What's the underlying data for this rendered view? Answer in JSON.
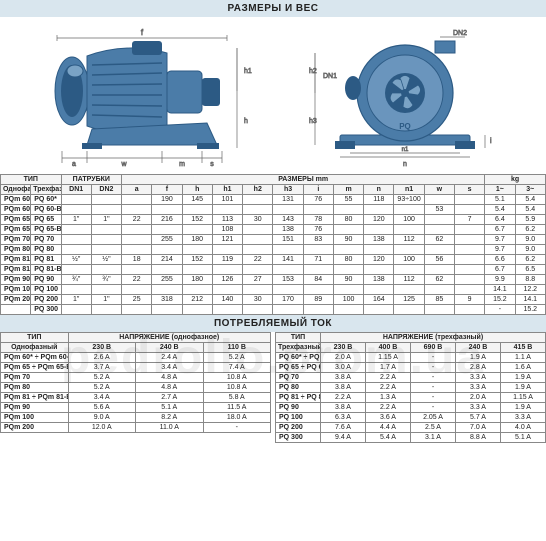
{
  "colors": {
    "header_bg": "#d9e6ee",
    "pump_body": "#4b7ca8",
    "pump_dark": "#2c5a84",
    "pump_light": "#7aa3c5",
    "dim_line": "#666666",
    "border": "#888888",
    "watermark": "#333333"
  },
  "title_top": "РАЗМЕРЫ И ВЕС",
  "title_bottom": "ПОТРЕБЛЯЕМЫЙ ТОК",
  "watermark_text": "pedrollo.prom.ua",
  "spec_table": {
    "group_headers": [
      "ТИП",
      "ПАТРУБКИ",
      "РАЗМЕРЫ mm",
      "kg"
    ],
    "col_headers": [
      "Однофазный",
      "Трехфазный",
      "DN1",
      "DN2",
      "a",
      "f",
      "h",
      "h1",
      "h2",
      "h3",
      "i",
      "m",
      "n",
      "n1",
      "w",
      "s",
      "1~",
      "3~"
    ],
    "rows": [
      [
        "PQm 60*",
        "PQ 60*",
        "",
        "",
        "",
        "190",
        "145",
        "101",
        "",
        "131",
        "76",
        "55",
        "118",
        "93÷100",
        "",
        "",
        "5.1",
        "5.4"
      ],
      [
        "PQm 60-Bs",
        "PQ 60-Bs",
        "",
        "",
        "",
        "",
        "",
        "",
        "",
        "",
        "",
        "",
        "",
        "",
        "53",
        "",
        "5.4",
        "5.4"
      ],
      [
        "PQm 65",
        "PQ 65",
        "1\"",
        "1\"",
        "22",
        "216",
        "152",
        "113",
        "30",
        "143",
        "78",
        "80",
        "120",
        "100",
        "",
        "7",
        "6.4",
        "5.9"
      ],
      [
        "PQm 65-Bs",
        "PQ 65-Bs",
        "",
        "",
        "",
        "",
        "",
        "108",
        "",
        "138",
        "76",
        "",
        "",
        "",
        "",
        "",
        "6.7",
        "6.2"
      ],
      [
        "PQm 70",
        "PQ 70",
        "",
        "",
        "",
        "255",
        "180",
        "121",
        "",
        "151",
        "83",
        "90",
        "138",
        "112",
        "62",
        "",
        "9.7",
        "9.0"
      ],
      [
        "PQm 80",
        "PQ 80",
        "",
        "",
        "",
        "",
        "",
        "",
        "",
        "",
        "",
        "",
        "",
        "",
        "",
        "",
        "9.7",
        "9.0"
      ],
      [
        "PQm 81",
        "PQ 81",
        "½\"",
        "½\"",
        "18",
        "214",
        "152",
        "119",
        "22",
        "141",
        "71",
        "80",
        "120",
        "100",
        "56",
        "",
        "6.6",
        "6.2"
      ],
      [
        "PQm 81-Bs",
        "PQ 81-Bs",
        "",
        "",
        "",
        "",
        "",
        "",
        "",
        "",
        "",
        "",
        "",
        "",
        "",
        "",
        "6.7",
        "6.5"
      ],
      [
        "PQm 90",
        "PQ 90",
        "¾\"",
        "¾\"",
        "22",
        "255",
        "180",
        "126",
        "27",
        "153",
        "84",
        "90",
        "138",
        "112",
        "62",
        "",
        "9.9",
        "8.8"
      ],
      [
        "PQm 100",
        "PQ 100",
        "",
        "",
        "",
        "",
        "",
        "",
        "",
        "",
        "",
        "",
        "",
        "",
        "",
        "",
        "14.1",
        "12.2"
      ],
      [
        "PQm 200",
        "PQ 200",
        "1\"",
        "1\"",
        "25",
        "318",
        "212",
        "140",
        "30",
        "170",
        "89",
        "100",
        "164",
        "125",
        "85",
        "9",
        "15.2",
        "14.1"
      ],
      [
        "",
        "PQ 300",
        "",
        "",
        "",
        "",
        "",
        "",
        "",
        "",
        "",
        "",
        "",
        "",
        "",
        "",
        "-",
        "15.2"
      ]
    ]
  },
  "current_left": {
    "title": "ТИП",
    "volt_title": "НАПРЯЖЕНИЕ (однофазное)",
    "headers": [
      "Однофазный",
      "230 В",
      "240 В",
      "110 В"
    ],
    "rows": [
      [
        "PQm 60* ÷ PQm 60-Bs",
        "2.6 A",
        "2.4 A",
        "5.2 A"
      ],
      [
        "PQm 65 ÷ PQm 65-Bs",
        "3.7 A",
        "3.4 A",
        "7.4 A"
      ],
      [
        "PQm 70",
        "5.2 A",
        "4.8 A",
        "10.8 A"
      ],
      [
        "PQm 80",
        "5.2 A",
        "4.8 A",
        "10.8 A"
      ],
      [
        "PQm 81 ÷ PQm 81-Bs",
        "3.4 A",
        "2.7 A",
        "5.8 A"
      ],
      [
        "PQm 90",
        "5.6 A",
        "5.1 A",
        "11.5 A"
      ],
      [
        "PQm 100",
        "9.0 A",
        "8.2 A",
        "18.0 A"
      ],
      [
        "PQm 200",
        "12.0 A",
        "11.0 A",
        "-"
      ]
    ]
  },
  "current_right": {
    "title": "ТИП",
    "volt_title": "НАПРЯЖЕНИЕ (трехфазный)",
    "headers": [
      "Трехфазный",
      "230 В",
      "400 В",
      "690 В",
      "240 В",
      "415 В"
    ],
    "rows": [
      [
        "PQ 60* ÷ PQ 60-Bs",
        "2.0 A",
        "1.15 A",
        "-",
        "1.9 A",
        "1.1 A"
      ],
      [
        "PQ 65 ÷ PQ 65-Bs",
        "3.0 A",
        "1.7 A",
        "-",
        "2.8 A",
        "1.6 A"
      ],
      [
        "PQ 70",
        "3.8 A",
        "2.2 A",
        "-",
        "3.3 A",
        "1.9 A"
      ],
      [
        "PQ 80",
        "3.8 A",
        "2.2 A",
        "-",
        "3.3 A",
        "1.9 A"
      ],
      [
        "PQ 81 ÷ PQ 81-Bs",
        "2.2 A",
        "1.3 A",
        "-",
        "2.0 A",
        "1.15 A"
      ],
      [
        "PQ 90",
        "3.8 A",
        "2.2 A",
        "-",
        "3.3 A",
        "1.9 A"
      ],
      [
        "PQ 100",
        "6.3 A",
        "3.6 A",
        "2.05 A",
        "5.7 A",
        "3.3 A"
      ],
      [
        "PQ 200",
        "7.6 A",
        "4.4 A",
        "2.5 A",
        "7.0 A",
        "4.0 A"
      ],
      [
        "PQ 300",
        "9.4 A",
        "5.4 A",
        "3.1 A",
        "8.8 A",
        "5.1 A"
      ]
    ]
  },
  "diagram": {
    "side_labels": [
      "a",
      "w",
      "m",
      "s",
      "f",
      "h1",
      "h"
    ],
    "front_labels": [
      "DN2",
      "DN1",
      "h2",
      "h3",
      "n1",
      "n",
      "i",
      "PQ"
    ]
  }
}
